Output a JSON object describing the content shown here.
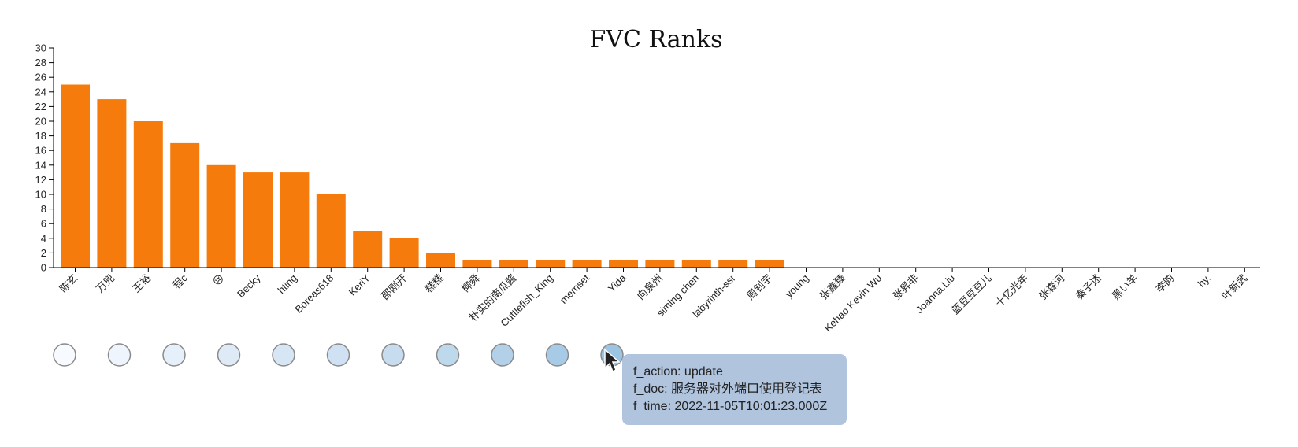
{
  "chart_data": {
    "type": "bar",
    "title": "FVC Ranks",
    "xlabel": "",
    "ylabel": "",
    "ylim": [
      0,
      30
    ],
    "yticks": [
      0,
      2,
      4,
      6,
      8,
      10,
      12,
      14,
      16,
      18,
      20,
      22,
      24,
      26,
      28,
      30
    ],
    "bar_color": "#f57c0c",
    "categories": [
      "陈玄",
      "万兜",
      "王裕",
      "程c",
      "😢",
      "Becky",
      "hting",
      "Boreas618",
      "KeriY",
      "邵刚开",
      "糕糕",
      "柳舜",
      "朴实的南瓜酱",
      "Cuttlefish_King",
      "memset",
      "Yida",
      "向泉州",
      "siming chen",
      "labyrinth-ssr",
      "周钊宇",
      "young",
      "张鑫臻",
      "Kehao Kevin Wu",
      "张昇非",
      "Joanna.Liu",
      "蓝豆豆豆儿",
      "十亿光年",
      "张森河",
      "秦子述",
      "黑い羊",
      "李韵",
      "hy.",
      "叶新武"
    ],
    "values": [
      25,
      23,
      20,
      17,
      14,
      13,
      13,
      10,
      5,
      4,
      2,
      1,
      1,
      1,
      1,
      1,
      1,
      1,
      1,
      1,
      0,
      0,
      0,
      0,
      0,
      0,
      0,
      0,
      0,
      0,
      0,
      0,
      0
    ]
  },
  "timeline": {
    "circle_colors": [
      "#f7fbff",
      "#eef5fc",
      "#e6f0fa",
      "#deebf7",
      "#d6e6f4",
      "#cfe1f2",
      "#c8dcf0",
      "#bed8ec",
      "#b2d1e9",
      "#a7cbe6",
      "#9cc5e3"
    ]
  },
  "tooltip": {
    "line1": "f_action: update",
    "line2": "f_doc: 服务器对外端口使用登记表",
    "line3": "f_time: 2022-11-05T10:01:23.000Z"
  }
}
